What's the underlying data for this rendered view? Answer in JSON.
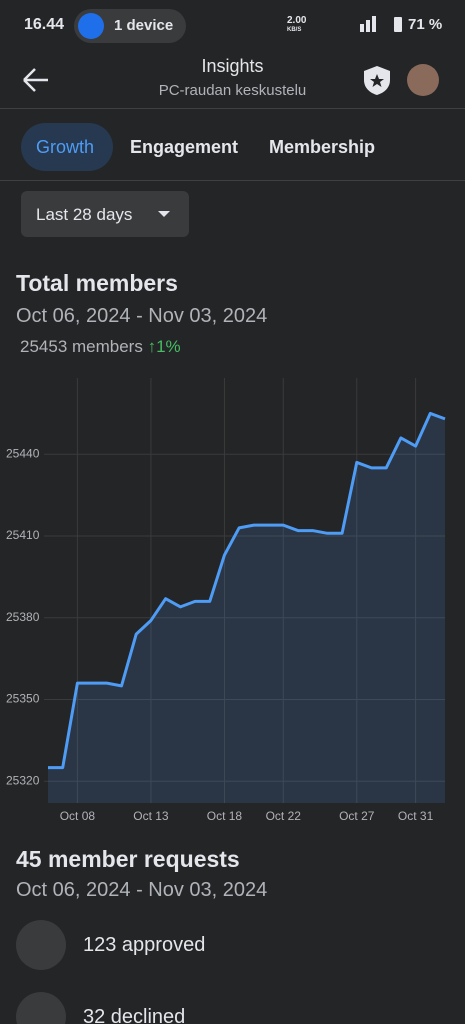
{
  "status_bar": {
    "time": "16.44",
    "cast": "1 device",
    "speed": "2.00",
    "speed_unit": "KB/S",
    "battery": "71 %"
  },
  "header": {
    "title": "Insights",
    "subtitle": "PC-raudan keskustelu"
  },
  "tabs": [
    "Growth",
    "Engagement",
    "Membership"
  ],
  "filter": "Last 28 days",
  "total": {
    "title": "Total members",
    "date_range": "Oct 06, 2024 - Nov 03, 2024",
    "members": "25453 members",
    "change": "1%"
  },
  "chart_data": {
    "type": "line",
    "categories": [
      null,
      null,
      "Oct 08",
      null,
      null,
      null,
      null,
      "Oct 13",
      null,
      null,
      null,
      null,
      "Oct 18",
      null,
      null,
      null,
      "Oct 22",
      null,
      null,
      null,
      null,
      "Oct 27",
      null,
      null,
      null,
      "Oct 31",
      null,
      null
    ],
    "series": [
      {
        "color": "#4e9cf5",
        "values": [
          25325,
          25325,
          25356,
          25356,
          25356,
          25355,
          25374,
          25379,
          25387,
          25384,
          25386,
          25386,
          25403,
          25413,
          25414,
          25414,
          25414,
          25412,
          25412,
          25411,
          25411,
          25437,
          25435,
          25435,
          25446,
          25443,
          25455,
          25453
        ]
      }
    ],
    "ylim": [
      25312,
      25468
    ],
    "yticks": [
      25320,
      25350,
      25380,
      25410,
      25440
    ],
    "grid": true
  },
  "requests": {
    "title": "45 member requests",
    "date_range": "Oct 06, 2024 - Nov 03, 2024",
    "items": [
      "123 approved",
      "32 declined"
    ]
  }
}
